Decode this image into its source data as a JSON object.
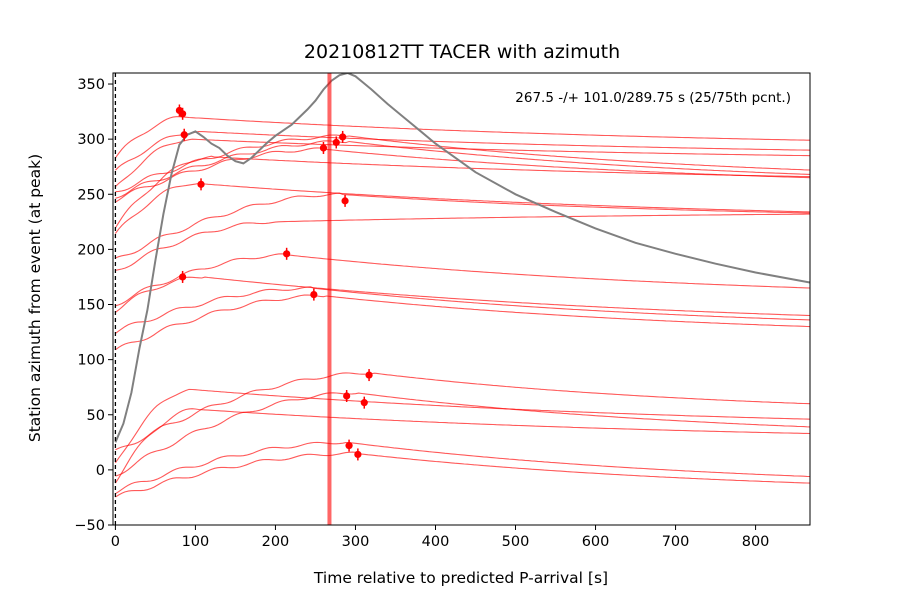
{
  "chart_data": {
    "type": "line",
    "title": "20210812TT TACER with azimuth",
    "xlabel": "Time relative to predicted P-arrival [s]",
    "ylabel": "Station azimuth from event (at peak)",
    "xlim": [
      -3,
      868
    ],
    "ylim": [
      -50,
      360
    ],
    "xticks": [
      0,
      100,
      200,
      300,
      400,
      500,
      600,
      700,
      800
    ],
    "yticks": [
      -50,
      0,
      50,
      100,
      150,
      200,
      250,
      300,
      350
    ],
    "grid": false,
    "annotation": "267.5 -/+ 101.0/289.75 s (25/75th pcnt.)",
    "vertical_lines": [
      {
        "x": 0,
        "style": "dashed",
        "color": "#000000"
      },
      {
        "x": 267.5,
        "style": "solid",
        "color": "#ff0000"
      }
    ],
    "envelope": {
      "color": "#808080",
      "points": [
        [
          0,
          25
        ],
        [
          10,
          42
        ],
        [
          20,
          70
        ],
        [
          30,
          110
        ],
        [
          40,
          145
        ],
        [
          50,
          190
        ],
        [
          60,
          232
        ],
        [
          70,
          268
        ],
        [
          80,
          295
        ],
        [
          90,
          304
        ],
        [
          100,
          307
        ],
        [
          110,
          302
        ],
        [
          120,
          296
        ],
        [
          130,
          292
        ],
        [
          140,
          285
        ],
        [
          150,
          280
        ],
        [
          160,
          278
        ],
        [
          170,
          283
        ],
        [
          180,
          290
        ],
        [
          190,
          297
        ],
        [
          200,
          303
        ],
        [
          210,
          308
        ],
        [
          220,
          313
        ],
        [
          230,
          320
        ],
        [
          240,
          327
        ],
        [
          250,
          335
        ],
        [
          260,
          345
        ],
        [
          270,
          353
        ],
        [
          280,
          358
        ],
        [
          290,
          360
        ],
        [
          300,
          357
        ],
        [
          310,
          351
        ],
        [
          320,
          345
        ],
        [
          340,
          332
        ],
        [
          360,
          320
        ],
        [
          380,
          308
        ],
        [
          400,
          296
        ],
        [
          450,
          270
        ],
        [
          500,
          250
        ],
        [
          550,
          234
        ],
        [
          600,
          219
        ],
        [
          650,
          206
        ],
        [
          700,
          196
        ],
        [
          750,
          187
        ],
        [
          800,
          179
        ],
        [
          868,
          170
        ]
      ]
    },
    "station_traces": {
      "color": "#ff0000",
      "traces": [
        {
          "start": 283,
          "peak_t": 85,
          "peak_y": 320,
          "end": 299
        },
        {
          "start": 270,
          "peak_t": 105,
          "peak_y": 307,
          "end": 290
        },
        {
          "start": 255,
          "peak_t": 95,
          "peak_y": 300,
          "end": 285
        },
        {
          "start": 252,
          "peak_t": 290,
          "peak_y": 303,
          "end": 272
        },
        {
          "start": 248,
          "peak_t": 290,
          "peak_y": 298,
          "end": 268
        },
        {
          "start": 245,
          "peak_t": 260,
          "peak_y": 291,
          "end": 265
        },
        {
          "start": 220,
          "peak_t": 120,
          "peak_y": 284,
          "end": 266
        },
        {
          "start": 213,
          "peak_t": 100,
          "peak_y": 260,
          "end": 234
        },
        {
          "start": 190,
          "peak_t": 280,
          "peak_y": 250,
          "end": 233
        },
        {
          "start": 180,
          "peak_t": 200,
          "peak_y": 225,
          "end": 232
        },
        {
          "start": 150,
          "peak_t": 215,
          "peak_y": 195,
          "end": 165
        },
        {
          "start": 145,
          "peak_t": 110,
          "peak_y": 175,
          "end": 140
        },
        {
          "start": 125,
          "peak_t": 245,
          "peak_y": 165,
          "end": 136
        },
        {
          "start": 108,
          "peak_t": 260,
          "peak_y": 158,
          "end": 130
        },
        {
          "start": 16,
          "peak_t": 320,
          "peak_y": 88,
          "end": 60
        },
        {
          "start": 5,
          "peak_t": 95,
          "peak_y": 73,
          "end": 46
        },
        {
          "start": -5,
          "peak_t": 300,
          "peak_y": 70,
          "end": 39
        },
        {
          "start": -10,
          "peak_t": 100,
          "peak_y": 55,
          "end": 33
        },
        {
          "start": -20,
          "peak_t": 290,
          "peak_y": 25,
          "end": -6
        },
        {
          "start": -25,
          "peak_t": 300,
          "peak_y": 15,
          "end": -12
        }
      ]
    },
    "peak_markers": {
      "color": "#ff0000",
      "points": [
        {
          "x": 80,
          "y": 326
        },
        {
          "x": 84,
          "y": 323
        },
        {
          "x": 86,
          "y": 304
        },
        {
          "x": 107,
          "y": 259
        },
        {
          "x": 260,
          "y": 292
        },
        {
          "x": 276,
          "y": 297
        },
        {
          "x": 284,
          "y": 302
        },
        {
          "x": 287,
          "y": 244
        },
        {
          "x": 214,
          "y": 196
        },
        {
          "x": 84,
          "y": 175
        },
        {
          "x": 248,
          "y": 159
        },
        {
          "x": 317,
          "y": 86
        },
        {
          "x": 289,
          "y": 67
        },
        {
          "x": 311,
          "y": 61
        },
        {
          "x": 292,
          "y": 22
        },
        {
          "x": 303,
          "y": 14
        }
      ]
    }
  }
}
